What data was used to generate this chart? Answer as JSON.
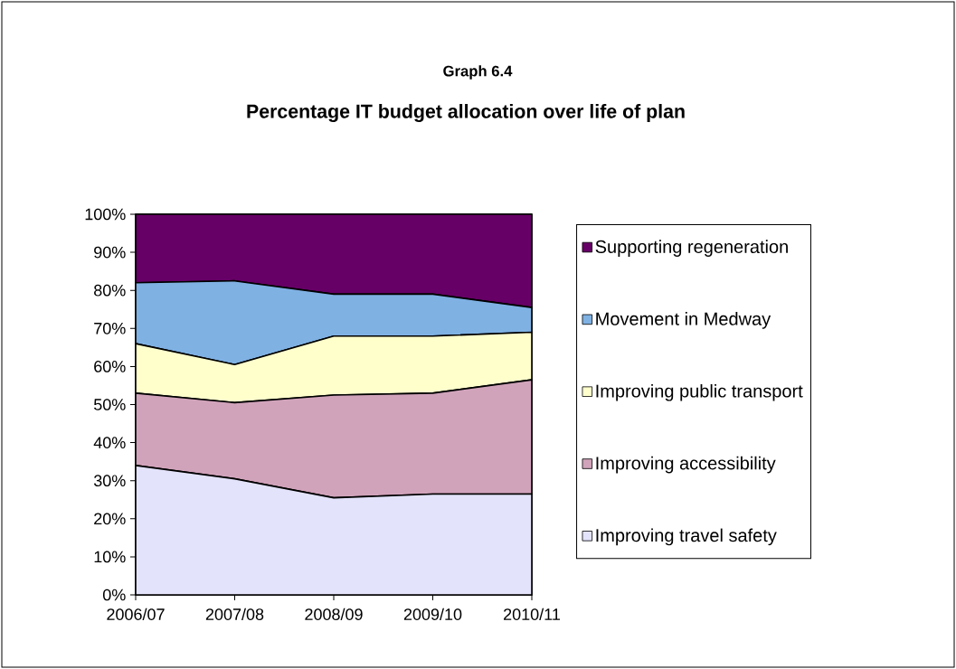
{
  "chart_data": {
    "type": "area",
    "title": "Graph 6.4",
    "subtitle": "Percentage IT budget allocation over life of plan",
    "categories": [
      "2006/07",
      "2007/08",
      "2008/09",
      "2009/10",
      "2010/11"
    ],
    "stacked": true,
    "series": [
      {
        "name": "Improving travel safety",
        "color": "#e3e3fb",
        "values": [
          34,
          30.5,
          25.5,
          26.5,
          26.5
        ]
      },
      {
        "name": "Improving accessibility",
        "color": "#d1a3bb",
        "values": [
          19,
          20,
          27,
          26.5,
          30
        ]
      },
      {
        "name": "Improving public transport",
        "color": "#ffffcc",
        "values": [
          13,
          10,
          15.5,
          15,
          12.5
        ]
      },
      {
        "name": "Movement in Medway",
        "color": "#7fb1e3",
        "values": [
          16,
          22,
          11,
          11,
          6.5
        ]
      },
      {
        "name": "Supporting regeneration",
        "color": "#660066",
        "values": [
          18,
          17.5,
          21,
          21,
          24.5
        ]
      }
    ],
    "ylim": [
      0,
      100
    ],
    "yticks": [
      {
        "value": 0,
        "label": "0%"
      },
      {
        "value": 10,
        "label": "10%"
      },
      {
        "value": 20,
        "label": "20%"
      },
      {
        "value": 30,
        "label": "30%"
      },
      {
        "value": 40,
        "label": "40%"
      },
      {
        "value": 50,
        "label": "50%"
      },
      {
        "value": 60,
        "label": "60%"
      },
      {
        "value": 70,
        "label": "70%"
      },
      {
        "value": 80,
        "label": "80%"
      },
      {
        "value": 90,
        "label": "90%"
      },
      {
        "value": 100,
        "label": "100%"
      }
    ],
    "legend": "right"
  }
}
